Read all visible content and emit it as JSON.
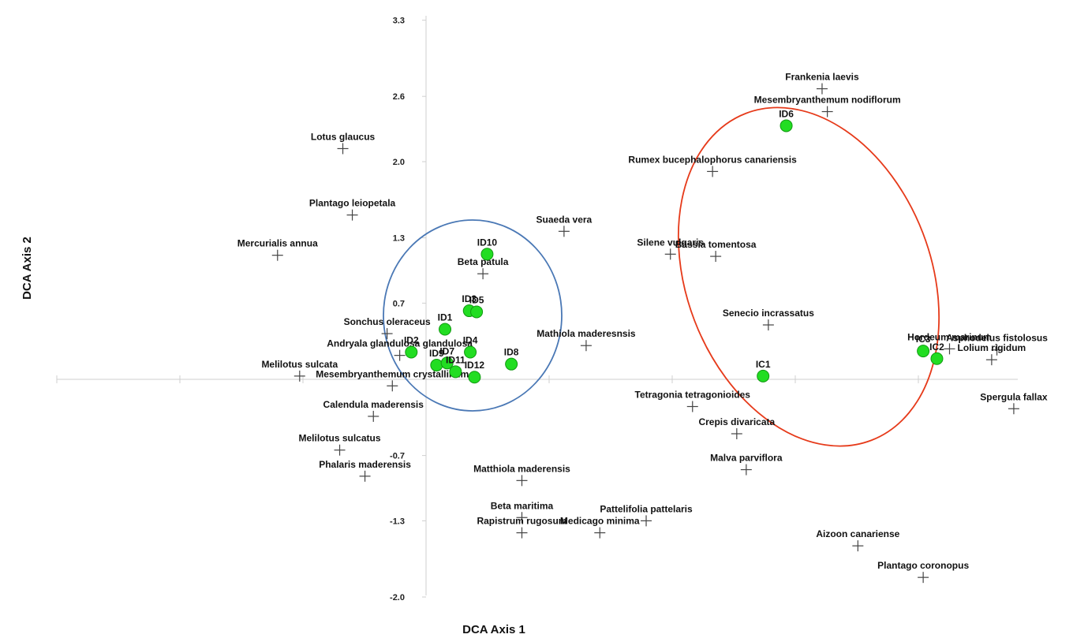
{
  "chart_data": {
    "type": "scatter",
    "xlabel": "DCA Axis 1",
    "ylabel": "DCA Axis 2",
    "y_ticks": [
      "3.3",
      "2.6",
      "2.0",
      "1.3",
      "0.7",
      "-0.7",
      "-1.3",
      "-2.0"
    ],
    "ylim": [
      -2.0,
      3.3
    ],
    "xlim": [
      -3.3,
      6.3
    ],
    "grid": false,
    "legend": "none",
    "colors": {
      "site": "#22dd22",
      "site_edge": "#119911",
      "species": "#444444",
      "blue_ellipse": "#4a78b5",
      "red_ellipse": "#e63a1a"
    },
    "sites": [
      {
        "label": "ID10",
        "x": 0.58,
        "y": 1.15
      },
      {
        "label": "ID3",
        "x": 0.41,
        "y": 0.63
      },
      {
        "label": "ID5",
        "x": 0.48,
        "y": 0.62
      },
      {
        "label": "ID1",
        "x": 0.18,
        "y": 0.46
      },
      {
        "label": "ID2",
        "x": -0.14,
        "y": 0.25
      },
      {
        "label": "ID4",
        "x": 0.42,
        "y": 0.25
      },
      {
        "label": "ID9",
        "x": 0.1,
        "y": 0.13
      },
      {
        "label": "ID7",
        "x": 0.2,
        "y": 0.15
      },
      {
        "label": "ID11",
        "x": 0.28,
        "y": 0.07
      },
      {
        "label": "ID12",
        "x": 0.46,
        "y": 0.02
      },
      {
        "label": "ID8",
        "x": 0.81,
        "y": 0.14
      },
      {
        "label": "ID6",
        "x": 3.42,
        "y": 2.33
      },
      {
        "label": "IC1",
        "x": 3.2,
        "y": 0.03
      },
      {
        "label": "IC3",
        "x": 4.72,
        "y": 0.26
      },
      {
        "label": "IC2",
        "x": 4.85,
        "y": 0.19
      }
    ],
    "species": [
      {
        "label": "Frankenia laevis",
        "x": 3.76,
        "y": 2.67
      },
      {
        "label": "Mesembryanthemum nodiflorum",
        "x": 3.81,
        "y": 2.46
      },
      {
        "label": "Lotus glaucus",
        "x": -0.79,
        "y": 2.12
      },
      {
        "label": "Rumex bucephalophorus canariensis",
        "x": 2.72,
        "y": 1.91
      },
      {
        "label": "Plantago leiopetala",
        "x": -0.7,
        "y": 1.51
      },
      {
        "label": "Suaeda vera",
        "x": 1.31,
        "y": 1.36
      },
      {
        "label": "Mercurialis annua",
        "x": -1.41,
        "y": 1.14
      },
      {
        "label": "Silene vulgaris",
        "x": 2.32,
        "y": 1.15
      },
      {
        "label": "Bassia tomentosa",
        "x": 2.75,
        "y": 1.13
      },
      {
        "label": "Beta patula",
        "x": 0.54,
        "y": 0.97
      },
      {
        "label": "Senecio incrassatus",
        "x": 3.25,
        "y": 0.5
      },
      {
        "label": "Sonchus oleraceus",
        "x": -0.37,
        "y": 0.42
      },
      {
        "label": "Mathiola maderesnsis",
        "x": 1.52,
        "y": 0.31
      },
      {
        "label": "Andryala glandulosa glandulosa",
        "x": -0.25,
        "y": 0.22
      },
      {
        "label": "Hordeum marinum",
        "x": 4.97,
        "y": 0.28
      },
      {
        "label": "Asphodelus fistolosus",
        "x": 5.42,
        "y": 0.27
      },
      {
        "label": "Lolium rigidum",
        "x": 5.37,
        "y": 0.18
      },
      {
        "label": "Melilotus sulcata",
        "x": -1.2,
        "y": 0.03
      },
      {
        "label": "Mesembryanthemum crystallinum",
        "x": -0.32,
        "y": -0.06
      },
      {
        "label": "Tetragonia tetragonioides",
        "x": 2.53,
        "y": -0.25
      },
      {
        "label": "Spergula fallax",
        "x": 5.58,
        "y": -0.27
      },
      {
        "label": "Calendula maderensis",
        "x": -0.5,
        "y": -0.34
      },
      {
        "label": "Crepis divaricata",
        "x": 2.95,
        "y": -0.5
      },
      {
        "label": "Melilotus sulcatus",
        "x": -0.82,
        "y": -0.65
      },
      {
        "label": "Malva parviflora",
        "x": 3.04,
        "y": -0.83
      },
      {
        "label": "Phalaris maderensis",
        "x": -0.58,
        "y": -0.89
      },
      {
        "label": "Matthiola maderensis",
        "x": 0.91,
        "y": -0.93
      },
      {
        "label": "Beta maritima",
        "x": 0.91,
        "y": -1.27
      },
      {
        "label": "Pattelifolia pattelaris",
        "x": 2.09,
        "y": -1.3
      },
      {
        "label": "Rapistrum rugosum",
        "x": 0.91,
        "y": -1.41
      },
      {
        "label": "Medicago minima",
        "x": 1.65,
        "y": -1.41
      },
      {
        "label": "Aizoon canariense",
        "x": 4.1,
        "y": -1.53
      },
      {
        "label": "Plantago coronopus",
        "x": 4.72,
        "y": -1.82
      }
    ]
  }
}
